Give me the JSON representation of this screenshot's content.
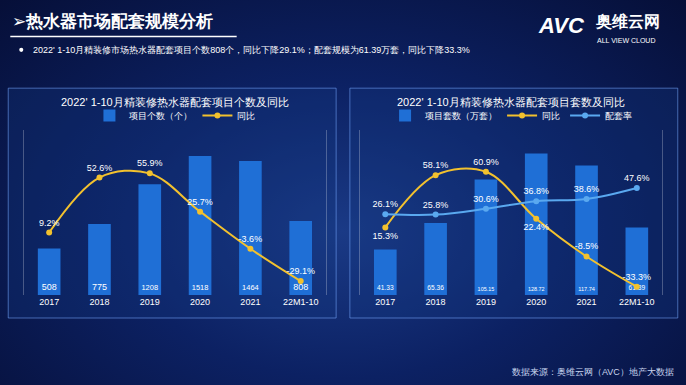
{
  "title": "➢热水器市场配套规模分析",
  "subtitle": "2022' 1-10月精装修市场热水器配套项目个数808个，同比下降29.1%；配套规模为61.39万套，同比下降33.3%",
  "logo": {
    "mark": "AVC",
    "name": "奥维云网",
    "name_en": "ALL VIEW CLOUD"
  },
  "source": "数据来源：奥维云网（AVC）地产大数据",
  "chart_data": [
    {
      "type": "bar",
      "title": "2022' 1-10月精装修热水器配套项目个数及同比",
      "categories": [
        "2017",
        "2018",
        "2019",
        "2020",
        "2021",
        "22M1-10"
      ],
      "series": [
        {
          "name": "项目个数（个）",
          "type": "bar",
          "color": "#1f6fd6",
          "values": [
            508,
            775,
            1208,
            1518,
            1464,
            808
          ]
        },
        {
          "name": "同比",
          "type": "line",
          "axis": "y2",
          "color": "#f2c12e",
          "marker": "circle",
          "values": [
            9.2,
            52.6,
            55.9,
            25.7,
            -3.6,
            -29.1
          ],
          "value_labels": [
            "9.2%",
            "52.6%",
            "55.9%",
            "25.7%",
            "-3.6%",
            "-29.1%"
          ]
        }
      ],
      "ylim": [
        0,
        1800
      ],
      "yticks": [],
      "y2lim": [
        -40,
        90
      ],
      "y2ticks": [],
      "tick_labels": "x",
      "data_labels": true,
      "grid": false,
      "legend": "top"
    },
    {
      "type": "bar",
      "title": "2022' 1-10月精装修热水器配套项目套数及同比",
      "categories": [
        "2017",
        "2018",
        "2019",
        "2020",
        "2021",
        "22M1-10"
      ],
      "series": [
        {
          "name": "项目套数（万套）",
          "type": "bar",
          "color": "#1f6fd6",
          "values": [
            41.33,
            65.36,
            105.15,
            128.72,
            117.74,
            61.39
          ]
        },
        {
          "name": "同比",
          "type": "line",
          "axis": "y2",
          "color": "#f2c12e",
          "marker": "circle",
          "values": [
            15.3,
            58.1,
            60.9,
            22.4,
            -8.5,
            -33.3
          ],
          "value_labels": [
            "15.3%",
            "58.1%",
            "60.9%",
            "22.4%",
            "-8.5%",
            "-33.3%"
          ]
        },
        {
          "name": "配套率",
          "type": "line",
          "axis": "y2",
          "color": "#5aa9f0",
          "marker": "circle",
          "values": [
            26.1,
            25.8,
            30.6,
            36.8,
            38.6,
            47.6
          ],
          "value_labels": [
            "26.1%",
            "25.8%",
            "30.6%",
            "36.8%",
            "38.6%",
            "47.6%"
          ]
        }
      ],
      "ylim": [
        0,
        150
      ],
      "yticks": [],
      "y2lim": [
        -40,
        95
      ],
      "y2ticks": [],
      "tick_labels": "x",
      "data_labels": true,
      "grid": false,
      "legend": "top"
    }
  ]
}
